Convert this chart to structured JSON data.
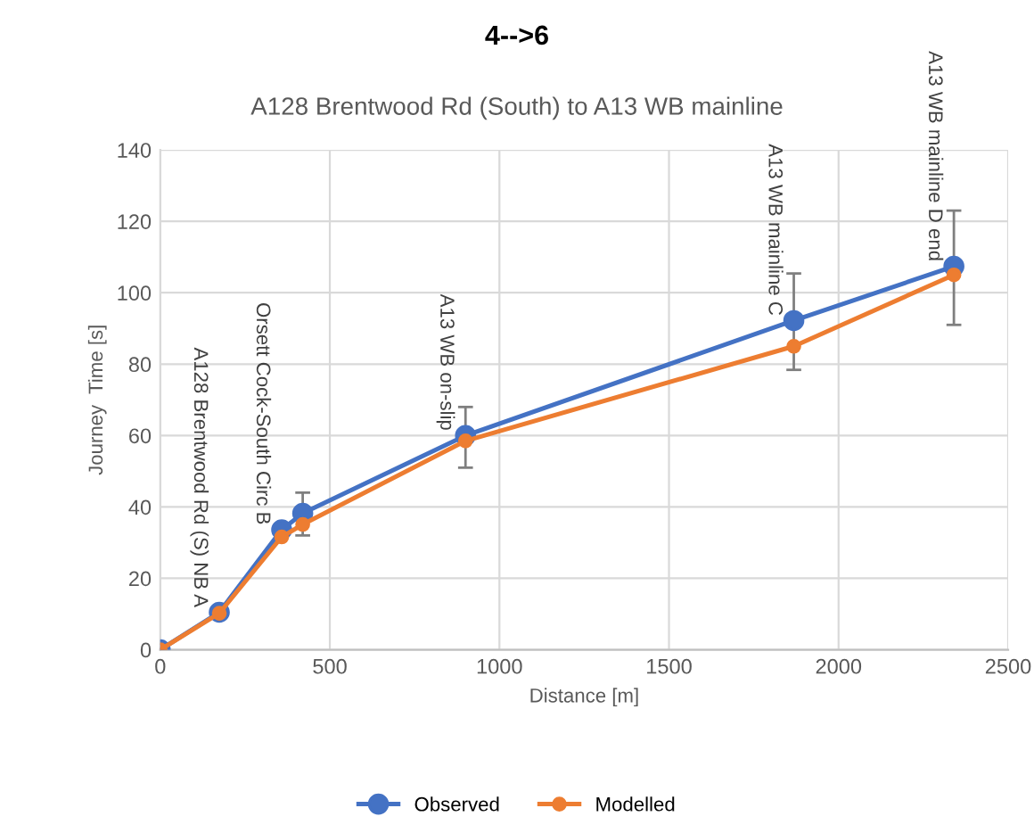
{
  "chart_data": {
    "type": "line",
    "title": "4-->6",
    "subtitle": "A128 Brentwood Rd (South) to A13 WB mainline",
    "xlabel": "Distance [m]",
    "ylabel": "Journey  Time [s]",
    "series": [
      {
        "name": "Observed",
        "color": "#4472c4",
        "x": [
          0,
          174,
          358,
          420,
          900,
          1868,
          2340
        ],
        "values": [
          0,
          10.5,
          33.6,
          38.2,
          60,
          92.2,
          107.4
        ],
        "errors": [
          null,
          null,
          null,
          [
            32,
            44
          ],
          [
            51,
            68
          ],
          [
            78.4,
            105.4
          ],
          [
            91,
            123
          ]
        ]
      },
      {
        "name": "Modelled",
        "color": "#ed7d31",
        "x": [
          0,
          174,
          358,
          420,
          900,
          1868,
          2340
        ],
        "values": [
          0,
          10.2,
          31.6,
          35.1,
          58.5,
          85,
          105
        ]
      }
    ],
    "annotations": [
      {
        "text": "A128 Brentwood Rd (S) NB A",
        "x": 174,
        "y": 10.5
      },
      {
        "text": "Orsett Cock-South Circ B",
        "x": 358,
        "y": 33.6
      },
      {
        "text": "A13 WB on-slip",
        "x": 900,
        "y": 60
      },
      {
        "text": "A13 WB mainline C",
        "x": 1868,
        "y": 92.2
      },
      {
        "text": "A13 WB mainline D end",
        "x": 2340,
        "y": 107.4
      }
    ],
    "xlim": [
      0,
      2500
    ],
    "xticks": [
      0,
      500,
      1000,
      1500,
      2000,
      2500
    ],
    "ylim": [
      0,
      140
    ],
    "yticks": [
      0,
      20,
      40,
      60,
      80,
      100,
      120,
      140
    ],
    "grid": true,
    "legend": "bottom",
    "marker": "circle",
    "line_style": "solid"
  }
}
